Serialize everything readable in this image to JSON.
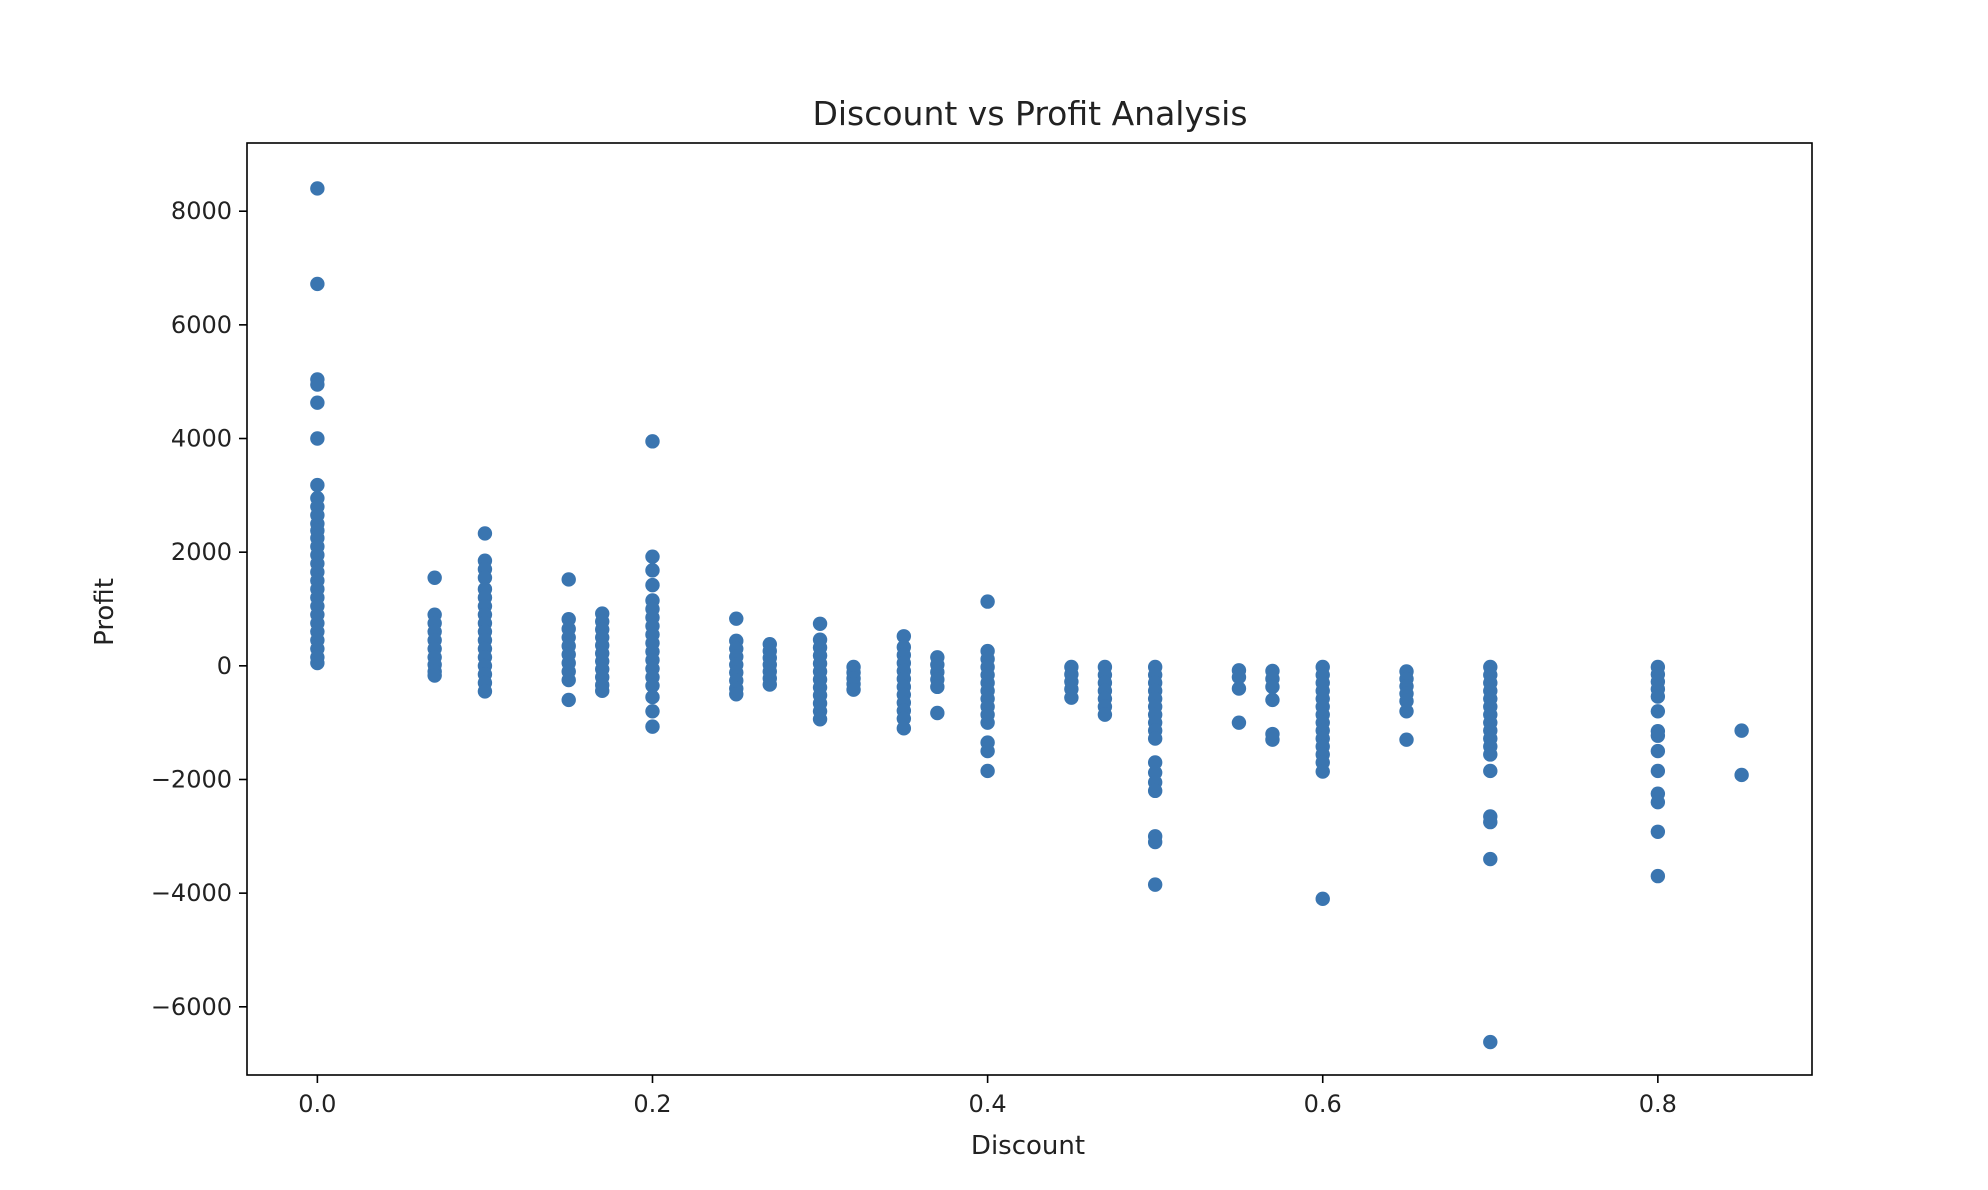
{
  "chart_data": {
    "type": "scatter",
    "title": "Discount vs Profit Analysis",
    "xlabel": "Discount",
    "ylabel": "Profit",
    "xlim": [
      -0.042,
      0.892
    ],
    "ylim": [
      -7200,
      9200
    ],
    "xticks": [
      0.0,
      0.2,
      0.4,
      0.6,
      0.8
    ],
    "xtick_labels": [
      "0.0",
      "0.2",
      "0.4",
      "0.6",
      "0.8"
    ],
    "yticks": [
      -6000,
      -4000,
      -2000,
      0,
      2000,
      4000,
      6000,
      8000
    ],
    "ytick_labels": [
      "−6000",
      "−4000",
      "−2000",
      "0",
      "2000",
      "4000",
      "6000",
      "8000"
    ],
    "grid": false,
    "legend": "none",
    "marker_color": "#3a75b0",
    "series": [
      {
        "points": [
          {
            "x": 0.0,
            "y": 8400
          },
          {
            "x": 0.0,
            "y": 6720
          },
          {
            "x": 0.0,
            "y": 5040
          },
          {
            "x": 0.0,
            "y": 4950
          },
          {
            "x": 0.0,
            "y": 4630
          },
          {
            "x": 0.0,
            "y": 4000
          },
          {
            "x": 0.0,
            "y": 3180
          },
          {
            "x": 0.0,
            "y": 2950
          },
          {
            "x": 0.0,
            "y": 2800
          },
          {
            "x": 0.0,
            "y": 2650
          },
          {
            "x": 0.0,
            "y": 2500
          },
          {
            "x": 0.0,
            "y": 2380
          },
          {
            "x": 0.0,
            "y": 2250
          },
          {
            "x": 0.0,
            "y": 2100
          },
          {
            "x": 0.0,
            "y": 1950
          },
          {
            "x": 0.0,
            "y": 1800
          },
          {
            "x": 0.0,
            "y": 1650
          },
          {
            "x": 0.0,
            "y": 1500
          },
          {
            "x": 0.0,
            "y": 1350
          },
          {
            "x": 0.0,
            "y": 1200
          },
          {
            "x": 0.0,
            "y": 1050
          },
          {
            "x": 0.0,
            "y": 900
          },
          {
            "x": 0.0,
            "y": 750
          },
          {
            "x": 0.0,
            "y": 600
          },
          {
            "x": 0.0,
            "y": 450
          },
          {
            "x": 0.0,
            "y": 300
          },
          {
            "x": 0.0,
            "y": 150
          },
          {
            "x": 0.0,
            "y": 50
          },
          {
            "x": 0.07,
            "y": 1550
          },
          {
            "x": 0.07,
            "y": 900
          },
          {
            "x": 0.07,
            "y": 750
          },
          {
            "x": 0.07,
            "y": 600
          },
          {
            "x": 0.07,
            "y": 450
          },
          {
            "x": 0.07,
            "y": 300
          },
          {
            "x": 0.07,
            "y": 150
          },
          {
            "x": 0.07,
            "y": 20
          },
          {
            "x": 0.07,
            "y": -100
          },
          {
            "x": 0.07,
            "y": -170
          },
          {
            "x": 0.1,
            "y": 2330
          },
          {
            "x": 0.1,
            "y": 1850
          },
          {
            "x": 0.1,
            "y": 1700
          },
          {
            "x": 0.1,
            "y": 1550
          },
          {
            "x": 0.1,
            "y": 1350
          },
          {
            "x": 0.1,
            "y": 1200
          },
          {
            "x": 0.1,
            "y": 1050
          },
          {
            "x": 0.1,
            "y": 900
          },
          {
            "x": 0.1,
            "y": 750
          },
          {
            "x": 0.1,
            "y": 600
          },
          {
            "x": 0.1,
            "y": 450
          },
          {
            "x": 0.1,
            "y": 300
          },
          {
            "x": 0.1,
            "y": 150
          },
          {
            "x": 0.1,
            "y": 0
          },
          {
            "x": 0.1,
            "y": -150
          },
          {
            "x": 0.1,
            "y": -300
          },
          {
            "x": 0.1,
            "y": -450
          },
          {
            "x": 0.15,
            "y": 1520
          },
          {
            "x": 0.15,
            "y": 820
          },
          {
            "x": 0.15,
            "y": 650
          },
          {
            "x": 0.15,
            "y": 500
          },
          {
            "x": 0.15,
            "y": 350
          },
          {
            "x": 0.15,
            "y": 200
          },
          {
            "x": 0.15,
            "y": 50
          },
          {
            "x": 0.15,
            "y": -100
          },
          {
            "x": 0.15,
            "y": -250
          },
          {
            "x": 0.15,
            "y": -600
          },
          {
            "x": 0.17,
            "y": 920
          },
          {
            "x": 0.17,
            "y": 780
          },
          {
            "x": 0.17,
            "y": 640
          },
          {
            "x": 0.17,
            "y": 500
          },
          {
            "x": 0.17,
            "y": 360
          },
          {
            "x": 0.17,
            "y": 220
          },
          {
            "x": 0.17,
            "y": 80
          },
          {
            "x": 0.17,
            "y": -60
          },
          {
            "x": 0.17,
            "y": -200
          },
          {
            "x": 0.17,
            "y": -340
          },
          {
            "x": 0.17,
            "y": -440
          },
          {
            "x": 0.2,
            "y": 3950
          },
          {
            "x": 0.2,
            "y": 1920
          },
          {
            "x": 0.2,
            "y": 1680
          },
          {
            "x": 0.2,
            "y": 1420
          },
          {
            "x": 0.2,
            "y": 1150
          },
          {
            "x": 0.2,
            "y": 1000
          },
          {
            "x": 0.2,
            "y": 850
          },
          {
            "x": 0.2,
            "y": 700
          },
          {
            "x": 0.2,
            "y": 550
          },
          {
            "x": 0.2,
            "y": 400
          },
          {
            "x": 0.2,
            "y": 250
          },
          {
            "x": 0.2,
            "y": 100
          },
          {
            "x": 0.2,
            "y": -50
          },
          {
            "x": 0.2,
            "y": -200
          },
          {
            "x": 0.2,
            "y": -350
          },
          {
            "x": 0.2,
            "y": -550
          },
          {
            "x": 0.2,
            "y": -800
          },
          {
            "x": 0.2,
            "y": -1070
          },
          {
            "x": 0.25,
            "y": 830
          },
          {
            "x": 0.25,
            "y": 440
          },
          {
            "x": 0.25,
            "y": 300
          },
          {
            "x": 0.25,
            "y": 160
          },
          {
            "x": 0.25,
            "y": 20
          },
          {
            "x": 0.25,
            "y": -120
          },
          {
            "x": 0.25,
            "y": -260
          },
          {
            "x": 0.25,
            "y": -400
          },
          {
            "x": 0.25,
            "y": -500
          },
          {
            "x": 0.27,
            "y": 380
          },
          {
            "x": 0.27,
            "y": 260
          },
          {
            "x": 0.27,
            "y": 140
          },
          {
            "x": 0.27,
            "y": 20
          },
          {
            "x": 0.27,
            "y": -100
          },
          {
            "x": 0.27,
            "y": -220
          },
          {
            "x": 0.27,
            "y": -330
          },
          {
            "x": 0.3,
            "y": 740
          },
          {
            "x": 0.3,
            "y": 460
          },
          {
            "x": 0.3,
            "y": 320
          },
          {
            "x": 0.3,
            "y": 180
          },
          {
            "x": 0.3,
            "y": 40
          },
          {
            "x": 0.3,
            "y": -100
          },
          {
            "x": 0.3,
            "y": -240
          },
          {
            "x": 0.3,
            "y": -380
          },
          {
            "x": 0.3,
            "y": -520
          },
          {
            "x": 0.3,
            "y": -660
          },
          {
            "x": 0.3,
            "y": -800
          },
          {
            "x": 0.3,
            "y": -940
          },
          {
            "x": 0.32,
            "y": -20
          },
          {
            "x": 0.32,
            "y": -120
          },
          {
            "x": 0.32,
            "y": -220
          },
          {
            "x": 0.32,
            "y": -320
          },
          {
            "x": 0.32,
            "y": -420
          },
          {
            "x": 0.35,
            "y": 520
          },
          {
            "x": 0.35,
            "y": 330
          },
          {
            "x": 0.35,
            "y": 190
          },
          {
            "x": 0.35,
            "y": 50
          },
          {
            "x": 0.35,
            "y": -90
          },
          {
            "x": 0.35,
            "y": -230
          },
          {
            "x": 0.35,
            "y": -370
          },
          {
            "x": 0.35,
            "y": -510
          },
          {
            "x": 0.35,
            "y": -650
          },
          {
            "x": 0.35,
            "y": -790
          },
          {
            "x": 0.35,
            "y": -930
          },
          {
            "x": 0.35,
            "y": -1100
          },
          {
            "x": 0.37,
            "y": 150
          },
          {
            "x": 0.37,
            "y": 20
          },
          {
            "x": 0.37,
            "y": -110
          },
          {
            "x": 0.37,
            "y": -240
          },
          {
            "x": 0.37,
            "y": -370
          },
          {
            "x": 0.37,
            "y": -830
          },
          {
            "x": 0.4,
            "y": 1130
          },
          {
            "x": 0.4,
            "y": 260
          },
          {
            "x": 0.4,
            "y": 120
          },
          {
            "x": 0.4,
            "y": -20
          },
          {
            "x": 0.4,
            "y": -160
          },
          {
            "x": 0.4,
            "y": -300
          },
          {
            "x": 0.4,
            "y": -440
          },
          {
            "x": 0.4,
            "y": -580
          },
          {
            "x": 0.4,
            "y": -720
          },
          {
            "x": 0.4,
            "y": -860
          },
          {
            "x": 0.4,
            "y": -1000
          },
          {
            "x": 0.4,
            "y": -1350
          },
          {
            "x": 0.4,
            "y": -1500
          },
          {
            "x": 0.4,
            "y": -1850
          },
          {
            "x": 0.45,
            "y": -20
          },
          {
            "x": 0.45,
            "y": -150
          },
          {
            "x": 0.45,
            "y": -280
          },
          {
            "x": 0.45,
            "y": -410
          },
          {
            "x": 0.45,
            "y": -560
          },
          {
            "x": 0.47,
            "y": -20
          },
          {
            "x": 0.47,
            "y": -160
          },
          {
            "x": 0.47,
            "y": -300
          },
          {
            "x": 0.47,
            "y": -440
          },
          {
            "x": 0.47,
            "y": -580
          },
          {
            "x": 0.47,
            "y": -720
          },
          {
            "x": 0.47,
            "y": -860
          },
          {
            "x": 0.5,
            "y": -20
          },
          {
            "x": 0.5,
            "y": -160
          },
          {
            "x": 0.5,
            "y": -300
          },
          {
            "x": 0.5,
            "y": -440
          },
          {
            "x": 0.5,
            "y": -580
          },
          {
            "x": 0.5,
            "y": -720
          },
          {
            "x": 0.5,
            "y": -860
          },
          {
            "x": 0.5,
            "y": -1000
          },
          {
            "x": 0.5,
            "y": -1140
          },
          {
            "x": 0.5,
            "y": -1280
          },
          {
            "x": 0.5,
            "y": -1700
          },
          {
            "x": 0.5,
            "y": -1880
          },
          {
            "x": 0.5,
            "y": -2050
          },
          {
            "x": 0.5,
            "y": -2200
          },
          {
            "x": 0.5,
            "y": -3000
          },
          {
            "x": 0.5,
            "y": -3100
          },
          {
            "x": 0.5,
            "y": -3850
          },
          {
            "x": 0.55,
            "y": -80
          },
          {
            "x": 0.55,
            "y": -200
          },
          {
            "x": 0.55,
            "y": -400
          },
          {
            "x": 0.55,
            "y": -1000
          },
          {
            "x": 0.57,
            "y": -90
          },
          {
            "x": 0.57,
            "y": -230
          },
          {
            "x": 0.57,
            "y": -370
          },
          {
            "x": 0.57,
            "y": -600
          },
          {
            "x": 0.57,
            "y": -1200
          },
          {
            "x": 0.57,
            "y": -1300
          },
          {
            "x": 0.6,
            "y": -20
          },
          {
            "x": 0.6,
            "y": -160
          },
          {
            "x": 0.6,
            "y": -300
          },
          {
            "x": 0.6,
            "y": -440
          },
          {
            "x": 0.6,
            "y": -580
          },
          {
            "x": 0.6,
            "y": -720
          },
          {
            "x": 0.6,
            "y": -860
          },
          {
            "x": 0.6,
            "y": -1000
          },
          {
            "x": 0.6,
            "y": -1140
          },
          {
            "x": 0.6,
            "y": -1280
          },
          {
            "x": 0.6,
            "y": -1420
          },
          {
            "x": 0.6,
            "y": -1560
          },
          {
            "x": 0.6,
            "y": -1700
          },
          {
            "x": 0.6,
            "y": -1860
          },
          {
            "x": 0.6,
            "y": -4100
          },
          {
            "x": 0.65,
            "y": -100
          },
          {
            "x": 0.65,
            "y": -230
          },
          {
            "x": 0.65,
            "y": -360
          },
          {
            "x": 0.65,
            "y": -490
          },
          {
            "x": 0.65,
            "y": -620
          },
          {
            "x": 0.65,
            "y": -800
          },
          {
            "x": 0.65,
            "y": -1300
          },
          {
            "x": 0.7,
            "y": -20
          },
          {
            "x": 0.7,
            "y": -160
          },
          {
            "x": 0.7,
            "y": -300
          },
          {
            "x": 0.7,
            "y": -440
          },
          {
            "x": 0.7,
            "y": -580
          },
          {
            "x": 0.7,
            "y": -720
          },
          {
            "x": 0.7,
            "y": -860
          },
          {
            "x": 0.7,
            "y": -1000
          },
          {
            "x": 0.7,
            "y": -1140
          },
          {
            "x": 0.7,
            "y": -1280
          },
          {
            "x": 0.7,
            "y": -1420
          },
          {
            "x": 0.7,
            "y": -1560
          },
          {
            "x": 0.7,
            "y": -1850
          },
          {
            "x": 0.7,
            "y": -2650
          },
          {
            "x": 0.7,
            "y": -2750
          },
          {
            "x": 0.7,
            "y": -3400
          },
          {
            "x": 0.7,
            "y": -6620
          },
          {
            "x": 0.8,
            "y": -20
          },
          {
            "x": 0.8,
            "y": -150
          },
          {
            "x": 0.8,
            "y": -280
          },
          {
            "x": 0.8,
            "y": -410
          },
          {
            "x": 0.8,
            "y": -540
          },
          {
            "x": 0.8,
            "y": -800
          },
          {
            "x": 0.8,
            "y": -1150
          },
          {
            "x": 0.8,
            "y": -1230
          },
          {
            "x": 0.8,
            "y": -1500
          },
          {
            "x": 0.8,
            "y": -1850
          },
          {
            "x": 0.8,
            "y": -2250
          },
          {
            "x": 0.8,
            "y": -2400
          },
          {
            "x": 0.8,
            "y": -2920
          },
          {
            "x": 0.8,
            "y": -3700
          },
          {
            "x": 0.85,
            "y": -1140
          },
          {
            "x": 0.85,
            "y": -1920
          }
        ]
      }
    ]
  }
}
